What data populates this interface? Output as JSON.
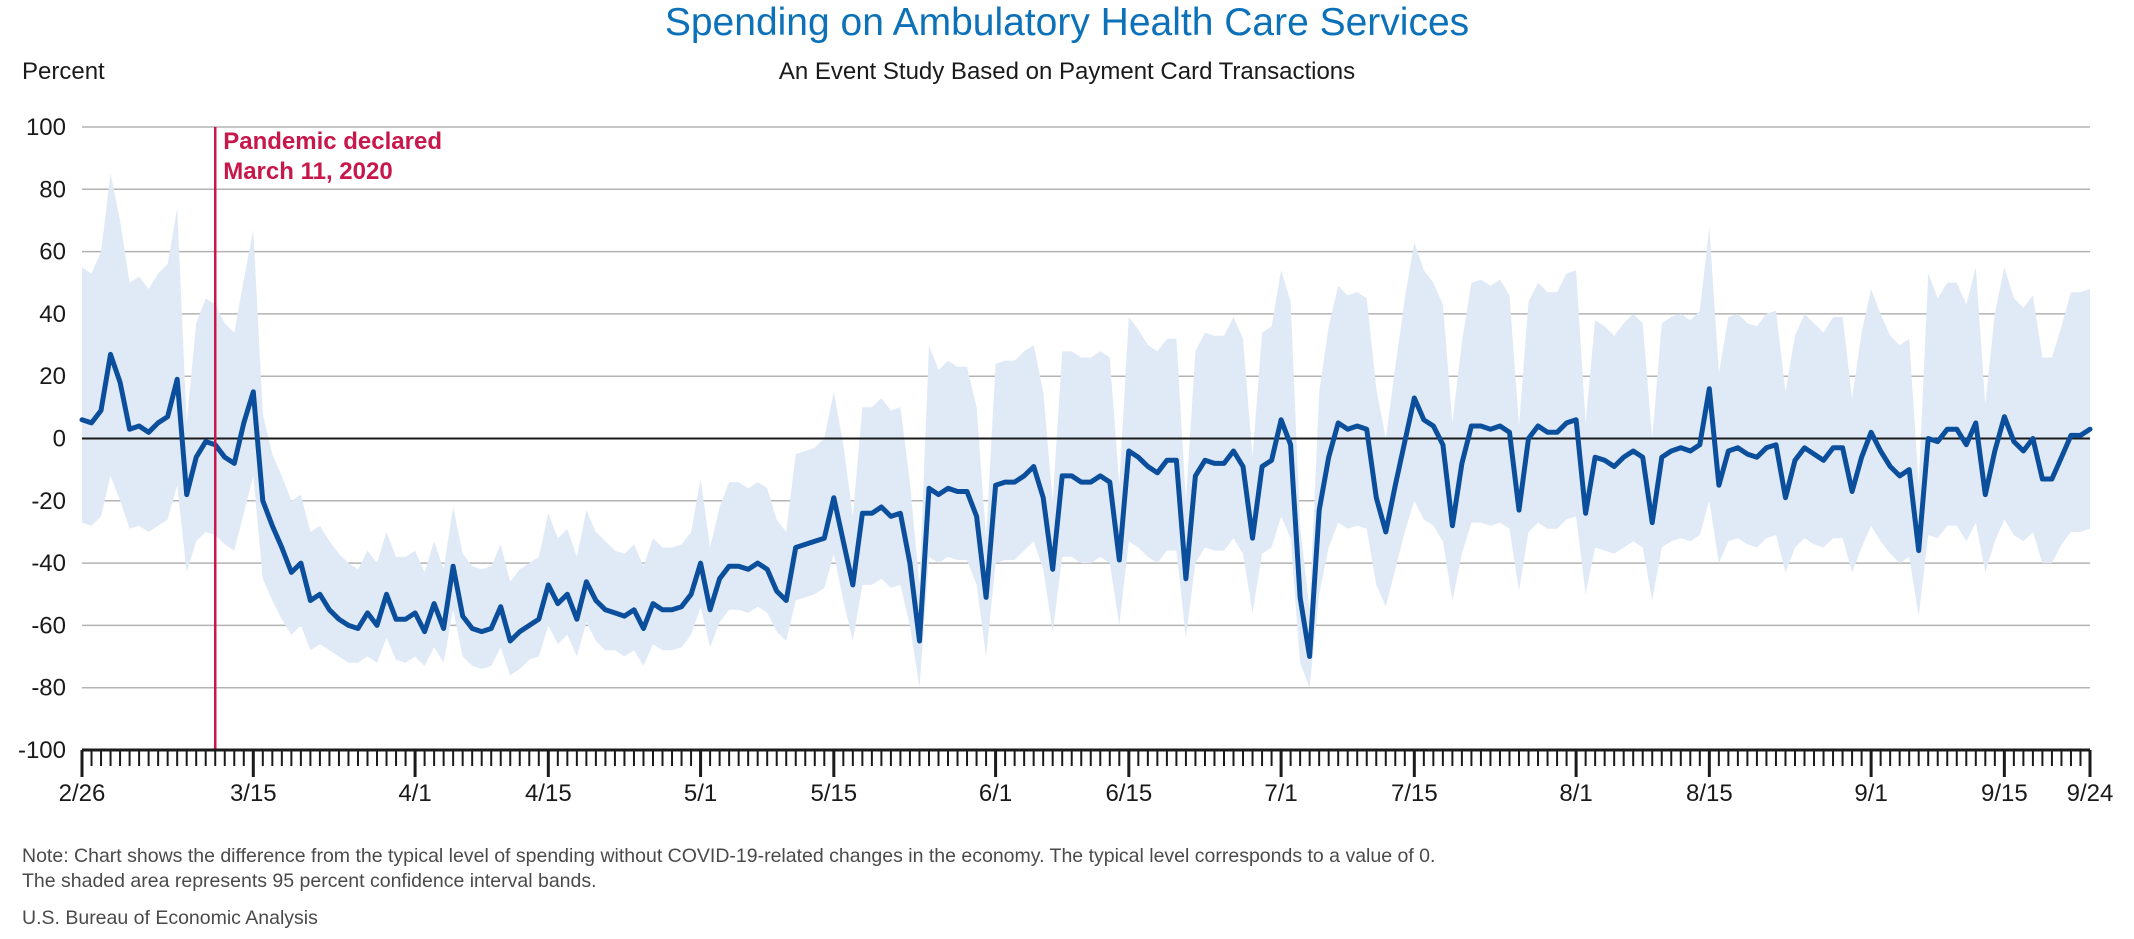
{
  "chart_data": {
    "type": "line",
    "title": "Spending on Ambulatory Health Care Services",
    "subtitle": "An Event Study Based on Payment Card Transactions",
    "ylabel": "Percent",
    "ylim": [
      -100,
      100
    ],
    "yticks": [
      100,
      80,
      60,
      40,
      20,
      0,
      -20,
      -40,
      -60,
      -80,
      -100
    ],
    "x_start": "2020-02-26",
    "x_end": "2020-09-24",
    "xtick_labels": [
      {
        "date": "2020-02-26",
        "label": "2/26"
      },
      {
        "date": "2020-03-15",
        "label": "3/15"
      },
      {
        "date": "2020-04-01",
        "label": "4/1"
      },
      {
        "date": "2020-04-15",
        "label": "4/15"
      },
      {
        "date": "2020-05-01",
        "label": "5/1"
      },
      {
        "date": "2020-05-15",
        "label": "5/15"
      },
      {
        "date": "2020-06-01",
        "label": "6/1"
      },
      {
        "date": "2020-06-15",
        "label": "6/15"
      },
      {
        "date": "2020-07-01",
        "label": "7/1"
      },
      {
        "date": "2020-07-15",
        "label": "7/15"
      },
      {
        "date": "2020-08-01",
        "label": "8/1"
      },
      {
        "date": "2020-08-15",
        "label": "8/15"
      },
      {
        "date": "2020-09-01",
        "label": "9/1"
      },
      {
        "date": "2020-09-15",
        "label": "9/15"
      },
      {
        "date": "2020-09-24",
        "label": "9/24"
      }
    ],
    "event": {
      "date": "2020-03-11",
      "label_line1": "Pandemic declared",
      "label_line2": "March 11, 2020"
    },
    "grid": true,
    "colors": {
      "line": "#0b4f9c",
      "band": "#e0eaf7",
      "event": "#c8174a",
      "grid": "#b3b3b3",
      "zero": "#1a1a1a"
    },
    "series": [
      {
        "start_date": "2020-02-26",
        "values": [
          6,
          5,
          9,
          27,
          18,
          3,
          4,
          2,
          5,
          7,
          19,
          -18,
          -6,
          -1,
          -2,
          -6,
          -8,
          5,
          15,
          -20,
          -28,
          -35,
          -43,
          -40,
          -52,
          -50,
          -55,
          -58,
          -60,
          -61,
          -56,
          -60,
          -50,
          -58,
          -58,
          -56,
          -62,
          -53,
          -61,
          -41,
          -57,
          -61,
          -62,
          -61,
          -54,
          -65,
          -62,
          -60,
          -58,
          -47,
          -53,
          -50,
          -58,
          -46,
          -52,
          -55,
          -56,
          -57,
          -55,
          -61,
          -53,
          -55,
          -55,
          -54,
          -50,
          -40,
          -55,
          -45,
          -41,
          -41,
          -42,
          -40,
          -42,
          -49,
          -52,
          -35,
          -34,
          -33,
          -32,
          -19,
          -33,
          -47,
          -24,
          -24,
          -22,
          -25,
          -24,
          -40,
          -65,
          -16,
          -18,
          -16,
          -17,
          -17,
          -25,
          -51,
          -15,
          -14,
          -14,
          -12,
          -9,
          -19,
          -42,
          -12,
          -12,
          -14,
          -14,
          -12,
          -14,
          -39,
          -4,
          -6,
          -9,
          -11,
          -7,
          -7,
          -45,
          -12,
          -7,
          -8,
          -8,
          -4,
          -9,
          -32,
          -9,
          -7,
          6,
          -2,
          -51,
          -70,
          -23,
          -6,
          5,
          3,
          4,
          3,
          -19,
          -30,
          -15,
          -1,
          13,
          6,
          4,
          -2,
          -28,
          -8,
          4,
          4,
          3,
          4,
          2,
          -23,
          0,
          4,
          2,
          2,
          5,
          6,
          -24,
          -6,
          -7,
          -9,
          -6,
          -4,
          -6,
          -27,
          -6,
          -4,
          -3,
          -4,
          -2,
          16,
          -15,
          -4,
          -3,
          -5,
          -6,
          -3,
          -2,
          -19,
          -7,
          -3,
          -5,
          -7,
          -3,
          -3,
          -17,
          -6,
          2,
          -4,
          -9,
          -12,
          -10,
          -36,
          0,
          -1,
          3,
          3,
          -2,
          5,
          -18,
          -4,
          7,
          -1,
          -4,
          0,
          -13,
          -13,
          -6,
          1,
          1,
          3
        ],
        "lower": [
          -27,
          -28,
          -25,
          -12,
          -20,
          -29,
          -28,
          -30,
          -28,
          -26,
          -15,
          -43,
          -33,
          -30,
          -31,
          -34,
          -36,
          -24,
          -12,
          -45,
          -52,
          -58,
          -63,
          -60,
          -68,
          -66,
          -68,
          -70,
          -72,
          -72,
          -70,
          -72,
          -64,
          -71,
          -72,
          -70,
          -73,
          -67,
          -72,
          -55,
          -70,
          -73,
          -74,
          -73,
          -67,
          -76,
          -74,
          -71,
          -70,
          -60,
          -66,
          -63,
          -70,
          -59,
          -65,
          -68,
          -68,
          -70,
          -68,
          -73,
          -66,
          -68,
          -68,
          -67,
          -63,
          -54,
          -67,
          -59,
          -55,
          -55,
          -56,
          -54,
          -56,
          -62,
          -65,
          -52,
          -51,
          -50,
          -48,
          -37,
          -52,
          -65,
          -47,
          -47,
          -45,
          -48,
          -47,
          -60,
          -80,
          -38,
          -40,
          -38,
          -39,
          -39,
          -47,
          -70,
          -40,
          -39,
          -39,
          -36,
          -33,
          -42,
          -62,
          -38,
          -38,
          -40,
          -40,
          -38,
          -40,
          -60,
          -33,
          -35,
          -38,
          -40,
          -36,
          -36,
          -64,
          -40,
          -35,
          -36,
          -36,
          -32,
          -37,
          -56,
          -37,
          -35,
          -25,
          -32,
          -72,
          -80,
          -50,
          -35,
          -27,
          -29,
          -28,
          -29,
          -47,
          -54,
          -42,
          -30,
          -20,
          -26,
          -28,
          -33,
          -52,
          -37,
          -27,
          -27,
          -28,
          -27,
          -29,
          -49,
          -30,
          -27,
          -29,
          -29,
          -26,
          -25,
          -50,
          -35,
          -36,
          -37,
          -35,
          -33,
          -35,
          -52,
          -35,
          -33,
          -32,
          -33,
          -31,
          -20,
          -40,
          -33,
          -32,
          -34,
          -35,
          -32,
          -31,
          -43,
          -35,
          -32,
          -34,
          -35,
          -32,
          -32,
          -43,
          -35,
          -28,
          -33,
          -37,
          -40,
          -38,
          -57,
          -31,
          -32,
          -28,
          -28,
          -33,
          -27,
          -43,
          -33,
          -26,
          -31,
          -33,
          -30,
          -40,
          -40,
          -34,
          -30,
          -30,
          -29
        ],
        "upper": [
          55,
          53,
          60,
          85,
          70,
          50,
          52,
          48,
          53,
          56,
          74,
          5,
          37,
          45,
          43,
          37,
          34,
          51,
          67,
          8,
          -5,
          -12,
          -20,
          -18,
          -30,
          -28,
          -33,
          -37,
          -40,
          -42,
          -36,
          -40,
          -30,
          -38,
          -38,
          -36,
          -43,
          -33,
          -42,
          -22,
          -37,
          -41,
          -42,
          -41,
          -34,
          -46,
          -42,
          -40,
          -38,
          -24,
          -32,
          -29,
          -38,
          -23,
          -30,
          -33,
          -36,
          -37,
          -34,
          -41,
          -32,
          -35,
          -35,
          -34,
          -30,
          -13,
          -35,
          -22,
          -14,
          -14,
          -16,
          -14,
          -16,
          -26,
          -30,
          -5,
          -4,
          -3,
          0,
          15,
          -2,
          -25,
          10,
          10,
          13,
          9,
          10,
          -14,
          -47,
          30,
          22,
          25,
          23,
          23,
          10,
          -32,
          24,
          25,
          25,
          28,
          30,
          15,
          -20,
          28,
          28,
          26,
          26,
          28,
          26,
          -15,
          39,
          35,
          30,
          28,
          32,
          32,
          -20,
          28,
          34,
          33,
          33,
          39,
          32,
          -6,
          34,
          36,
          54,
          44,
          -28,
          -55,
          15,
          36,
          49,
          46,
          47,
          45,
          16,
          0,
          23,
          45,
          63,
          54,
          50,
          43,
          5,
          31,
          50,
          51,
          49,
          51,
          46,
          4,
          44,
          50,
          47,
          47,
          53,
          54,
          5,
          38,
          36,
          33,
          37,
          40,
          37,
          0,
          37,
          39,
          40,
          38,
          41,
          68,
          21,
          39,
          40,
          37,
          36,
          40,
          41,
          15,
          33,
          40,
          37,
          34,
          39,
          39,
          13,
          34,
          48,
          40,
          33,
          30,
          32,
          -15,
          53,
          45,
          50,
          50,
          43,
          55,
          11,
          40,
          55,
          45,
          42,
          46,
          26,
          26,
          36,
          47,
          47,
          48
        ]
      }
    ]
  },
  "notes": {
    "line1": "Note: Chart shows the difference from the typical level of spending without COVID-19-related changes in the economy. The typical level corresponds to a value of 0.",
    "line2": "The shaded area represents 95 percent confidence interval bands.",
    "source": "U.S. Bureau of Economic Analysis"
  }
}
